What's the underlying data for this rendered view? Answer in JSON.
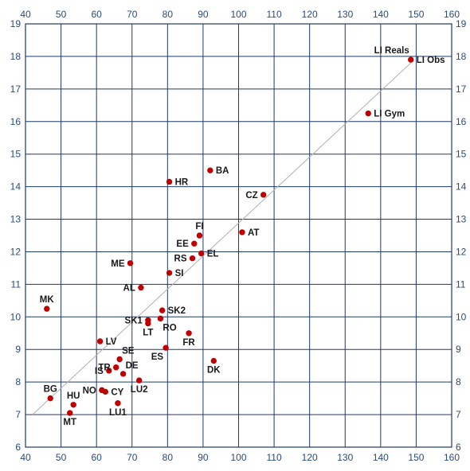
{
  "chart_data": {
    "type": "scatter",
    "title": "",
    "xlabel": "",
    "ylabel": "",
    "xlim": [
      40,
      160
    ],
    "ylim": [
      6,
      19
    ],
    "x_ticks": [
      40,
      50,
      60,
      70,
      80,
      90,
      100,
      110,
      120,
      130,
      140,
      150,
      160
    ],
    "y_ticks": [
      6,
      7,
      8,
      9,
      10,
      11,
      12,
      13,
      14,
      15,
      16,
      17,
      18,
      19
    ],
    "grid": true,
    "colors": {
      "point": "#c00000",
      "trendline": "#b0b0b0",
      "grid": "#1f3a68",
      "tick_text": "#2a4b7c"
    },
    "trendline": {
      "x": [
        42,
        148.5
      ],
      "y": [
        7.0,
        17.8
      ]
    },
    "points": [
      {
        "label": "LI Reals",
        "x": 148.5,
        "y": 17.9,
        "label_pos": "top-left"
      },
      {
        "label": "LI Obs",
        "x": 148.5,
        "y": 17.9,
        "label_pos": "right"
      },
      {
        "label": "LI Gym",
        "x": 136.5,
        "y": 16.25,
        "label_pos": "right"
      },
      {
        "label": "BA",
        "x": 92,
        "y": 14.5,
        "label_pos": "right"
      },
      {
        "label": "HR",
        "x": 80.5,
        "y": 14.15,
        "label_pos": "right"
      },
      {
        "label": "CZ",
        "x": 107,
        "y": 13.75,
        "label_pos": "left"
      },
      {
        "label": "FI",
        "x": 89,
        "y": 12.5,
        "label_pos": "top"
      },
      {
        "label": "AT",
        "x": 101,
        "y": 12.6,
        "label_pos": "right"
      },
      {
        "label": "EE",
        "x": 87.5,
        "y": 12.25,
        "label_pos": "left"
      },
      {
        "label": "EL",
        "x": 89.5,
        "y": 11.95,
        "label_pos": "right"
      },
      {
        "label": "RS",
        "x": 87,
        "y": 11.8,
        "label_pos": "left"
      },
      {
        "label": "ME",
        "x": 69.5,
        "y": 11.65,
        "label_pos": "left"
      },
      {
        "label": "SI",
        "x": 80.5,
        "y": 11.35,
        "label_pos": "right"
      },
      {
        "label": "AL",
        "x": 72.5,
        "y": 10.9,
        "label_pos": "left"
      },
      {
        "label": "MK",
        "x": 46,
        "y": 10.25,
        "label_pos": "top"
      },
      {
        "label": "SK2",
        "x": 78.5,
        "y": 10.2,
        "label_pos": "right"
      },
      {
        "label": "SK1",
        "x": 74.5,
        "y": 9.9,
        "label_pos": "left"
      },
      {
        "label": "LT",
        "x": 74.5,
        "y": 9.8,
        "label_pos": "bottom"
      },
      {
        "label": "RO",
        "x": 78,
        "y": 9.95,
        "label_pos": "bottom-right"
      },
      {
        "label": "FR",
        "x": 86,
        "y": 9.5,
        "label_pos": "bottom"
      },
      {
        "label": "LV",
        "x": 61,
        "y": 9.25,
        "label_pos": "right"
      },
      {
        "label": "ES",
        "x": 79.5,
        "y": 9.05,
        "label_pos": "bottom-left"
      },
      {
        "label": "SE",
        "x": 66.5,
        "y": 8.7,
        "label_pos": "top-right"
      },
      {
        "label": "DK",
        "x": 93,
        "y": 8.65,
        "label_pos": "bottom"
      },
      {
        "label": "TR",
        "x": 65.5,
        "y": 8.45,
        "label_pos": "left"
      },
      {
        "label": "IS",
        "x": 63.5,
        "y": 8.35,
        "label_pos": "left"
      },
      {
        "label": "DE",
        "x": 67.5,
        "y": 8.25,
        "label_pos": "top-right"
      },
      {
        "label": "LU2",
        "x": 72,
        "y": 8.05,
        "label_pos": "bottom"
      },
      {
        "label": "NO",
        "x": 61.5,
        "y": 7.75,
        "label_pos": "left"
      },
      {
        "label": "CY",
        "x": 62.5,
        "y": 7.7,
        "label_pos": "right"
      },
      {
        "label": "BG",
        "x": 47,
        "y": 7.5,
        "label_pos": "top"
      },
      {
        "label": "HU",
        "x": 53.5,
        "y": 7.3,
        "label_pos": "top"
      },
      {
        "label": "LU1",
        "x": 66,
        "y": 7.35,
        "label_pos": "bottom"
      },
      {
        "label": "MT",
        "x": 52.5,
        "y": 7.05,
        "label_pos": "bottom"
      }
    ]
  }
}
